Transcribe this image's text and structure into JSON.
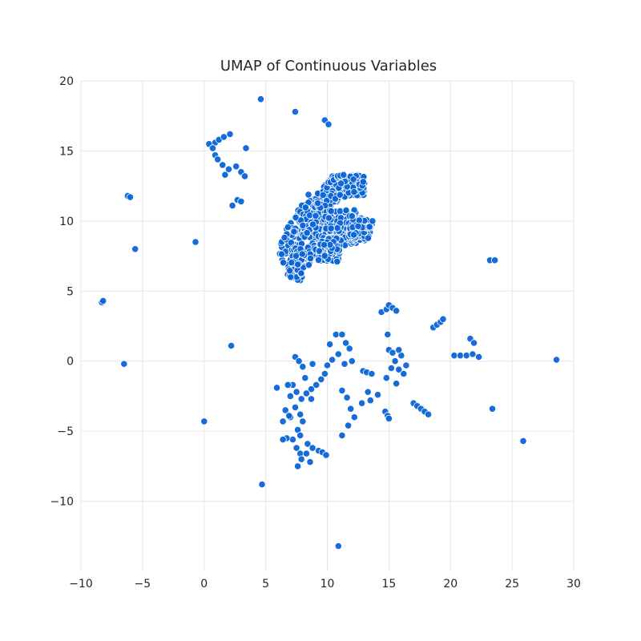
{
  "chart_data": {
    "type": "scatter",
    "title": "UMAP of Continuous Variables",
    "xlabel": "",
    "ylabel": "",
    "xlim": [
      -10,
      30
    ],
    "ylim": [
      -15,
      20
    ],
    "xticks": [
      -10,
      -5,
      0,
      5,
      10,
      15,
      20,
      25,
      30
    ],
    "yticks": [
      -10,
      -5,
      0,
      5,
      10,
      15,
      20
    ],
    "xtick_labels": [
      "−10",
      "−5",
      "0",
      "5",
      "10",
      "15",
      "20",
      "25",
      "30"
    ],
    "ytick_labels": [
      "−10",
      "−5",
      "0",
      "5",
      "10",
      "15",
      "20"
    ],
    "grid": true,
    "marker_color": "#0a64d8",
    "series": [
      {
        "points": [
          [
            4.6,
            18.7
          ],
          [
            7.4,
            17.8
          ],
          [
            9.8,
            17.2
          ],
          [
            10.1,
            16.9
          ],
          [
            0.4,
            15.5
          ],
          [
            0.9,
            15.6
          ],
          [
            1.2,
            15.8
          ],
          [
            1.6,
            16.0
          ],
          [
            2.1,
            16.2
          ],
          [
            0.7,
            15.2
          ],
          [
            3.4,
            15.2
          ],
          [
            0.9,
            14.7
          ],
          [
            1.1,
            14.4
          ],
          [
            1.5,
            14.0
          ],
          [
            2.0,
            13.7
          ],
          [
            2.6,
            13.9
          ],
          [
            3.0,
            13.5
          ],
          [
            3.3,
            13.2
          ],
          [
            1.7,
            13.3
          ],
          [
            2.3,
            11.1
          ],
          [
            2.7,
            11.5
          ],
          [
            3.0,
            11.4
          ],
          [
            -6.2,
            11.8
          ],
          [
            -6.0,
            11.7
          ],
          [
            -5.6,
            8.0
          ],
          [
            -0.7,
            8.5
          ],
          [
            -8.3,
            4.2
          ],
          [
            -8.2,
            4.3
          ],
          [
            2.2,
            1.1
          ],
          [
            -6.5,
            -0.2
          ],
          [
            0.0,
            -4.3
          ],
          [
            4.7,
            -8.8
          ],
          [
            10.9,
            -13.2
          ],
          [
            23.2,
            7.2
          ],
          [
            23.6,
            7.2
          ],
          [
            14.4,
            3.5
          ],
          [
            14.8,
            3.7
          ],
          [
            15.0,
            4.0
          ],
          [
            15.3,
            3.8
          ],
          [
            15.6,
            3.6
          ],
          [
            18.6,
            2.4
          ],
          [
            18.9,
            2.6
          ],
          [
            19.2,
            2.8
          ],
          [
            19.4,
            3.0
          ],
          [
            20.3,
            0.4
          ],
          [
            20.8,
            0.4
          ],
          [
            21.3,
            0.4
          ],
          [
            21.8,
            0.5
          ],
          [
            22.3,
            0.3
          ],
          [
            21.6,
            1.6
          ],
          [
            21.9,
            1.3
          ],
          [
            28.6,
            0.1
          ],
          [
            25.9,
            -5.7
          ],
          [
            23.4,
            -3.4
          ],
          [
            17.0,
            -3.0
          ],
          [
            17.3,
            -3.2
          ],
          [
            17.6,
            -3.4
          ],
          [
            17.9,
            -3.6
          ],
          [
            18.2,
            -3.8
          ],
          [
            14.7,
            -3.6
          ],
          [
            14.9,
            -3.9
          ],
          [
            15.0,
            -4.1
          ],
          [
            15.2,
            -0.5
          ],
          [
            15.5,
            0.0
          ],
          [
            15.8,
            -0.6
          ],
          [
            16.0,
            0.4
          ],
          [
            16.2,
            -0.9
          ],
          [
            16.4,
            -0.3
          ],
          [
            15.0,
            0.8
          ],
          [
            15.3,
            0.6
          ],
          [
            15.8,
            0.8
          ],
          [
            14.8,
            -1.2
          ],
          [
            15.6,
            -1.6
          ],
          [
            14.9,
            1.9
          ],
          [
            10.2,
            1.2
          ],
          [
            10.7,
            1.9
          ],
          [
            11.2,
            1.9
          ],
          [
            11.5,
            1.3
          ],
          [
            11.8,
            0.9
          ],
          [
            12.0,
            0.0
          ],
          [
            11.4,
            -0.2
          ],
          [
            10.9,
            0.5
          ],
          [
            12.9,
            -0.7
          ],
          [
            13.2,
            -0.8
          ],
          [
            13.6,
            -0.9
          ],
          [
            14.1,
            -2.4
          ],
          [
            13.3,
            -2.2
          ],
          [
            13.5,
            -2.8
          ],
          [
            12.8,
            -3.0
          ],
          [
            11.2,
            -2.1
          ],
          [
            11.6,
            -2.6
          ],
          [
            11.9,
            -3.4
          ],
          [
            12.2,
            -4.0
          ],
          [
            11.7,
            -4.6
          ],
          [
            11.2,
            -5.3
          ],
          [
            10.4,
            0.1
          ],
          [
            10.0,
            -0.3
          ],
          [
            9.8,
            -0.9
          ],
          [
            9.5,
            -1.3
          ],
          [
            9.1,
            -1.7
          ],
          [
            8.7,
            -2.0
          ],
          [
            8.3,
            -2.3
          ],
          [
            7.9,
            -2.7
          ],
          [
            7.5,
            -2.2
          ],
          [
            7.2,
            -1.7
          ],
          [
            7.0,
            -2.5
          ],
          [
            8.7,
            -2.7
          ],
          [
            8.2,
            -1.2
          ],
          [
            8.8,
            -0.2
          ],
          [
            7.4,
            0.3
          ],
          [
            7.7,
            0.0
          ],
          [
            8.0,
            -0.4
          ],
          [
            5.9,
            -1.9
          ],
          [
            6.8,
            -1.7
          ],
          [
            6.6,
            -3.5
          ],
          [
            7.0,
            -4.0
          ],
          [
            7.4,
            -3.3
          ],
          [
            7.8,
            -3.8
          ],
          [
            8.0,
            -4.3
          ],
          [
            6.9,
            -3.9
          ],
          [
            6.4,
            -4.3
          ],
          [
            7.6,
            -4.9
          ],
          [
            7.8,
            -5.3
          ],
          [
            7.2,
            -5.6
          ],
          [
            6.7,
            -5.5
          ],
          [
            6.4,
            -5.6
          ],
          [
            7.5,
            -6.2
          ],
          [
            7.8,
            -6.6
          ],
          [
            7.9,
            -7.0
          ],
          [
            7.6,
            -7.5
          ],
          [
            8.3,
            -6.6
          ],
          [
            8.6,
            -7.2
          ],
          [
            8.4,
            -5.9
          ],
          [
            8.8,
            -6.2
          ],
          [
            9.3,
            -6.4
          ],
          [
            9.6,
            -6.5
          ],
          [
            9.9,
            -6.7
          ]
        ],
        "cluster": {
          "parallelograms": [
            [
              [
                5.9,
                8.3
              ],
              [
                8.5,
                12.0
              ],
              [
                9.5,
                11.2
              ],
              [
                6.6,
                6.2
              ]
            ],
            [
              [
                6.6,
                6.2
              ],
              [
                9.5,
                11.2
              ],
              [
                10.2,
                9.4
              ],
              [
                7.7,
                5.6
              ]
            ],
            [
              [
                8.8,
                11.6
              ],
              [
                10.6,
                13.4
              ],
              [
                11.8,
                12.4
              ],
              [
                9.8,
                10.4
              ]
            ],
            [
              [
                10.8,
                13.3
              ],
              [
                13.1,
                13.3
              ],
              [
                13.0,
                11.8
              ],
              [
                11.0,
                11.6
              ]
            ],
            [
              [
                9.8,
                10.8
              ],
              [
                12.5,
                10.8
              ],
              [
                12.4,
                8.3
              ],
              [
                9.8,
                8.0
              ]
            ],
            [
              [
                11.8,
                10.4
              ],
              [
                13.7,
                10.0
              ],
              [
                13.3,
                8.6
              ],
              [
                11.5,
                8.6
              ]
            ],
            [
              [
                9.5,
                8.8
              ],
              [
                11.2,
                8.8
              ],
              [
                10.9,
                7.0
              ],
              [
                9.2,
                7.2
              ]
            ]
          ],
          "count": 900
        }
      }
    ]
  }
}
